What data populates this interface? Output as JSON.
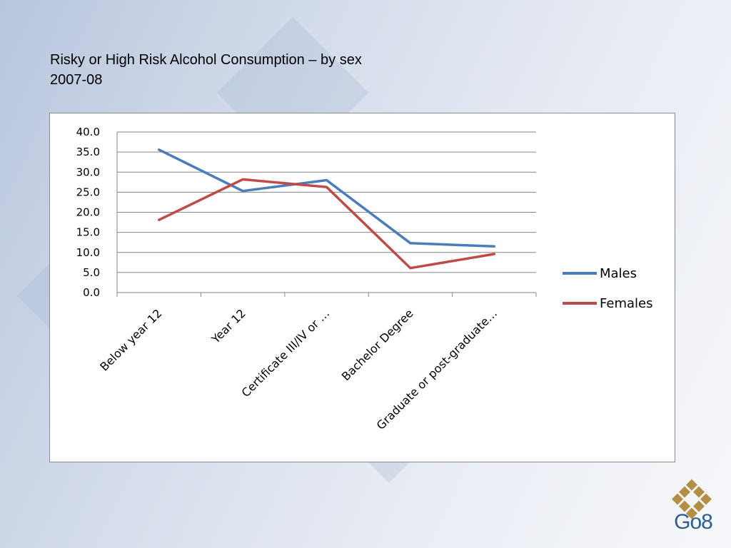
{
  "title": {
    "line1": "Risky or High Risk Alcohol Consumption – by sex",
    "line2": "2007-08"
  },
  "logo": {
    "text": "Go8"
  },
  "colors": {
    "males": "#4a7ebb",
    "females": "#be4b48",
    "logo_gold": "#b38f45",
    "logo_text": "#2f5f8a"
  },
  "chart_data": {
    "type": "line",
    "categories": [
      "Below year 12",
      "Year 12",
      "Certificate III/IV or …",
      "Bachelor Degree",
      "Graduate or post-graduate…"
    ],
    "series": [
      {
        "name": "Males",
        "values": [
          35.6,
          25.3,
          28.0,
          12.3,
          11.5
        ]
      },
      {
        "name": "Females",
        "values": [
          18.1,
          28.2,
          26.3,
          6.1,
          9.6
        ]
      }
    ],
    "yticks": [
      "0.0",
      "5.0",
      "10.0",
      "15.0",
      "20.0",
      "25.0",
      "30.0",
      "35.0",
      "40.0"
    ],
    "ylim": [
      0,
      40
    ],
    "grid": true,
    "legend_position": "right"
  }
}
